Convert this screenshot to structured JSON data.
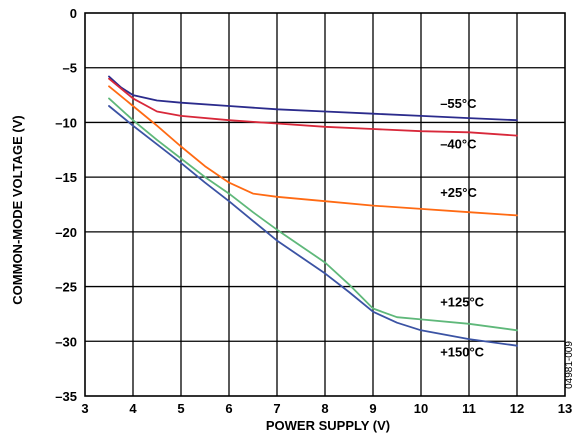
{
  "chart_data": {
    "type": "line",
    "xlabel": "POWER SUPPLY (V)",
    "ylabel": "COMMON-MODE VOLTAGE (V)",
    "xlim": [
      3,
      13
    ],
    "ylim": [
      -35,
      0
    ],
    "x_ticks": [
      3,
      4,
      5,
      6,
      7,
      8,
      9,
      10,
      11,
      12,
      13
    ],
    "y_ticks": [
      0,
      -5,
      -10,
      -15,
      -20,
      -25,
      -30,
      -35
    ],
    "x_tick_labels": [
      "3",
      "4",
      "5",
      "6",
      "7",
      "8",
      "9",
      "10",
      "11",
      "12",
      "13"
    ],
    "y_tick_labels": [
      "0",
      "–5",
      "–10",
      "–15",
      "–20",
      "–25",
      "–30",
      "–35"
    ],
    "grid": true,
    "figure_code": "04981-009",
    "series": [
      {
        "name": "–55°C",
        "color": "#2b2b8c",
        "points": [
          [
            3.5,
            -5.8
          ],
          [
            3.75,
            -6.8
          ],
          [
            4.0,
            -7.5
          ],
          [
            4.5,
            -8.0
          ],
          [
            5.0,
            -8.2
          ],
          [
            6.0,
            -8.5
          ],
          [
            7.0,
            -8.8
          ],
          [
            8.0,
            -9.0
          ],
          [
            9.0,
            -9.2
          ],
          [
            10.0,
            -9.4
          ],
          [
            11.0,
            -9.6
          ],
          [
            12.0,
            -9.8
          ]
        ]
      },
      {
        "name": "–40°C",
        "color": "#d8283a",
        "points": [
          [
            3.5,
            -6.0
          ],
          [
            4.0,
            -7.8
          ],
          [
            4.5,
            -9.0
          ],
          [
            5.0,
            -9.4
          ],
          [
            6.0,
            -9.8
          ],
          [
            7.0,
            -10.1
          ],
          [
            8.0,
            -10.4
          ],
          [
            9.0,
            -10.6
          ],
          [
            10.0,
            -10.8
          ],
          [
            11.0,
            -10.9
          ],
          [
            12.0,
            -11.2
          ]
        ]
      },
      {
        "name": "+25°C",
        "color": "#ff6a13",
        "points": [
          [
            3.5,
            -6.7
          ],
          [
            4.0,
            -8.5
          ],
          [
            4.5,
            -10.3
          ],
          [
            5.0,
            -12.2
          ],
          [
            5.5,
            -14.0
          ],
          [
            6.0,
            -15.5
          ],
          [
            6.5,
            -16.5
          ],
          [
            7.0,
            -16.8
          ],
          [
            8.0,
            -17.2
          ],
          [
            9.0,
            -17.6
          ],
          [
            10.0,
            -17.9
          ],
          [
            11.0,
            -18.2
          ],
          [
            12.0,
            -18.5
          ]
        ]
      },
      {
        "name": "+125°C",
        "color": "#5fb87a",
        "points": [
          [
            3.5,
            -7.8
          ],
          [
            4.0,
            -9.8
          ],
          [
            4.5,
            -11.6
          ],
          [
            5.0,
            -13.3
          ],
          [
            5.5,
            -15.0
          ],
          [
            6.0,
            -16.5
          ],
          [
            6.5,
            -18.2
          ],
          [
            7.0,
            -19.8
          ],
          [
            7.5,
            -21.3
          ],
          [
            8.0,
            -22.8
          ],
          [
            8.5,
            -24.8
          ],
          [
            9.0,
            -27.0
          ],
          [
            9.5,
            -27.8
          ],
          [
            10.0,
            -28.0
          ],
          [
            11.0,
            -28.4
          ],
          [
            12.0,
            -29.0
          ]
        ]
      },
      {
        "name": "+150°C",
        "color": "#3b53a4",
        "points": [
          [
            3.5,
            -8.5
          ],
          [
            4.0,
            -10.3
          ],
          [
            4.5,
            -12.0
          ],
          [
            5.0,
            -13.7
          ],
          [
            5.5,
            -15.5
          ],
          [
            6.0,
            -17.2
          ],
          [
            6.5,
            -19.0
          ],
          [
            7.0,
            -20.8
          ],
          [
            7.5,
            -22.3
          ],
          [
            8.0,
            -23.8
          ],
          [
            8.5,
            -25.5
          ],
          [
            9.0,
            -27.3
          ],
          [
            9.5,
            -28.3
          ],
          [
            10.0,
            -29.0
          ],
          [
            11.0,
            -29.8
          ],
          [
            12.0,
            -30.4
          ]
        ]
      }
    ],
    "series_labels": [
      {
        "text": "–55°C",
        "x": 10.4,
        "y": -8.7
      },
      {
        "text": "–40°C",
        "x": 10.4,
        "y": -12.4
      },
      {
        "text": "+25°C",
        "x": 10.4,
        "y": -16.8
      },
      {
        "text": "+125°C",
        "x": 10.4,
        "y": -26.8
      },
      {
        "text": "+150°C",
        "x": 10.4,
        "y": -31.4
      }
    ]
  }
}
